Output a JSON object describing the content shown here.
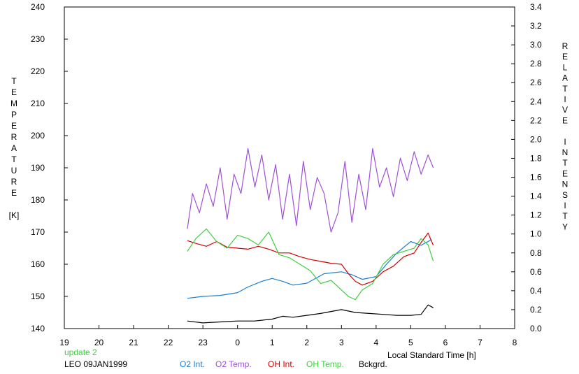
{
  "footer": {
    "update": "update 2",
    "site_date": "LEO 09JAN1999"
  },
  "chart_data": {
    "type": "line",
    "xlabel": "Local Standard Time [h]",
    "x_ticks": [
      "19",
      "20",
      "21",
      "22",
      "23",
      "0",
      "1",
      "2",
      "3",
      "4",
      "5",
      "6",
      "7",
      "8"
    ],
    "xlim": [
      19,
      32
    ],
    "ylabel_left_letters": [
      "T",
      "E",
      "M",
      "P",
      "E",
      "R",
      "A",
      "T",
      "U",
      "R",
      "E"
    ],
    "ylabel_left_unit": "[K]",
    "ylim_left": [
      140,
      240
    ],
    "y_ticks_left": [
      "140",
      "150",
      "160",
      "170",
      "180",
      "190",
      "200",
      "210",
      "220",
      "230",
      "240"
    ],
    "ylabel_right_letters": [
      "R",
      "E",
      "L",
      "A",
      "T",
      "I",
      "V",
      "E",
      "",
      "I",
      "N",
      "T",
      "E",
      "N",
      "S",
      "I",
      "T",
      "Y"
    ],
    "ylim_right": [
      0.0,
      3.4
    ],
    "y_ticks_right": [
      "0.0",
      "0.2",
      "0.4",
      "0.6",
      "0.8",
      "1.0",
      "1.2",
      "1.4",
      "1.6",
      "1.8",
      "2.0",
      "2.2",
      "2.4",
      "2.6",
      "2.8",
      "3.0",
      "3.2",
      "3.4"
    ],
    "grid": false,
    "legend_position": "bottom",
    "series": [
      {
        "name": "O2 Int.",
        "color": "#1a7fd4",
        "axis": "right",
        "x": [
          22.55,
          23.0,
          23.5,
          24.0,
          24.3,
          24.7,
          25.0,
          25.3,
          25.6,
          26.0,
          26.5,
          27.0,
          27.3,
          27.6,
          28.0,
          28.3,
          28.6,
          29.0,
          29.3,
          29.6
        ],
        "y": [
          0.32,
          0.34,
          0.35,
          0.38,
          0.44,
          0.5,
          0.53,
          0.5,
          0.46,
          0.48,
          0.58,
          0.6,
          0.57,
          0.52,
          0.55,
          0.68,
          0.8,
          0.92,
          0.88,
          0.94
        ]
      },
      {
        "name": "O2 Temp.",
        "color": "#a050d8",
        "axis": "left",
        "x": [
          22.55,
          22.7,
          22.9,
          23.1,
          23.3,
          23.5,
          23.7,
          23.9,
          24.1,
          24.3,
          24.5,
          24.7,
          24.9,
          25.1,
          25.3,
          25.5,
          25.7,
          25.9,
          26.1,
          26.3,
          26.5,
          26.7,
          26.9,
          27.1,
          27.3,
          27.5,
          27.7,
          27.9,
          28.1,
          28.3,
          28.5,
          28.7,
          28.9,
          29.1,
          29.3,
          29.5,
          29.65
        ],
        "y": [
          171,
          182,
          176,
          185,
          178,
          190,
          174,
          188,
          182,
          196,
          184,
          194,
          180,
          191,
          174,
          188,
          172,
          192,
          177,
          187,
          182,
          170,
          176,
          192,
          173,
          188,
          177,
          196,
          184,
          190,
          181,
          193,
          186,
          195,
          188,
          194,
          190
        ]
      },
      {
        "name": "OH Int.",
        "color": "#d40000",
        "axis": "right",
        "x": [
          22.55,
          22.8,
          23.1,
          23.4,
          23.7,
          24.0,
          24.3,
          24.6,
          24.9,
          25.2,
          25.5,
          25.8,
          26.1,
          26.4,
          26.7,
          27.0,
          27.2,
          27.4,
          27.6,
          27.9,
          28.2,
          28.5,
          28.8,
          29.1,
          29.3,
          29.5,
          29.65
        ],
        "y": [
          0.93,
          0.9,
          0.87,
          0.92,
          0.86,
          0.85,
          0.84,
          0.87,
          0.84,
          0.8,
          0.8,
          0.76,
          0.73,
          0.71,
          0.69,
          0.68,
          0.58,
          0.5,
          0.46,
          0.5,
          0.6,
          0.66,
          0.76,
          0.8,
          0.91,
          1.01,
          0.88
        ]
      },
      {
        "name": "OH Temp.",
        "color": "#3fcf3f",
        "axis": "left",
        "x": [
          22.55,
          22.8,
          23.1,
          23.4,
          23.7,
          24.0,
          24.3,
          24.6,
          24.9,
          25.2,
          25.5,
          25.8,
          26.1,
          26.4,
          26.7,
          27.0,
          27.2,
          27.4,
          27.6,
          27.9,
          28.2,
          28.5,
          28.8,
          29.1,
          29.3,
          29.5,
          29.65
        ],
        "y": [
          164,
          168,
          171,
          167,
          165,
          169,
          168,
          166,
          170,
          163,
          162,
          160,
          158,
          154,
          155,
          152,
          150,
          149,
          152,
          154,
          160,
          163,
          164,
          165,
          168,
          166,
          161
        ]
      },
      {
        "name": "Bckgrd.",
        "color": "#000000",
        "axis": "right",
        "x": [
          22.55,
          23.0,
          23.5,
          24.0,
          24.5,
          25.0,
          25.3,
          25.6,
          26.0,
          26.4,
          26.7,
          27.0,
          27.4,
          27.8,
          28.2,
          28.6,
          29.0,
          29.3,
          29.5,
          29.65
        ],
        "y": [
          0.08,
          0.06,
          0.07,
          0.08,
          0.08,
          0.1,
          0.13,
          0.12,
          0.14,
          0.16,
          0.18,
          0.2,
          0.17,
          0.16,
          0.15,
          0.14,
          0.14,
          0.15,
          0.25,
          0.22
        ]
      }
    ]
  }
}
